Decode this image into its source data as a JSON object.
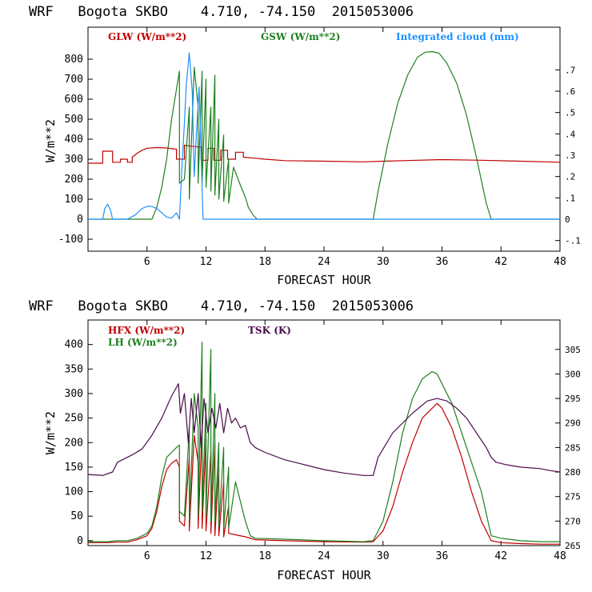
{
  "chart_data": [
    {
      "type": "line",
      "title": "WRF   Bogota SKBO    4.710, -74.150  2015053006",
      "xlabel": "FORECAST HOUR",
      "ylabel": "W/m**2",
      "xlim": [
        0,
        48
      ],
      "ylim": [
        -160,
        960
      ],
      "y2lim": [
        -0.15,
        0.9
      ],
      "xticks": [
        6,
        12,
        18,
        24,
        30,
        36,
        42,
        48
      ],
      "yticks": [
        -100,
        0,
        100,
        200,
        300,
        400,
        500,
        600,
        700,
        800
      ],
      "y2ticks": [
        -0.1,
        0,
        0.1,
        0.2,
        0.3,
        0.4,
        0.5,
        0.6,
        0.7
      ],
      "xtick_labels": [
        "6",
        "12",
        "18",
        "24",
        "30",
        "36",
        "42",
        "48"
      ],
      "ytick_labels": [
        "-100",
        "0",
        "100",
        "200",
        "300",
        "400",
        "500",
        "600",
        "700",
        "800"
      ],
      "y2tick_labels": [
        "-.1",
        "0",
        ".1",
        ".2",
        ".3",
        ".4",
        ".5",
        ".6",
        ".7"
      ],
      "series": [
        {
          "name": "GLW (W/m**2)",
          "color": "#c00000",
          "axis": "left",
          "x": [
            0,
            1.5,
            1.5,
            2.5,
            2.5,
            3.3,
            3.3,
            4.0,
            4.0,
            4.5,
            4.5,
            5.0,
            5.5,
            6,
            7,
            8,
            9.0,
            9.0,
            9.8,
            9.8,
            10.5,
            11.5,
            11.5,
            12.2,
            12.2,
            12.8,
            12.8,
            13.5,
            13.5,
            14.2,
            14.2,
            15.0,
            15.0,
            15.8,
            15.8,
            17,
            18,
            20,
            24,
            28,
            30,
            36,
            40,
            44,
            48
          ],
          "y": [
            280,
            280,
            340,
            340,
            285,
            285,
            300,
            300,
            285,
            285,
            310,
            330,
            345,
            355,
            358,
            356,
            350,
            300,
            300,
            370,
            365,
            360,
            295,
            295,
            355,
            355,
            295,
            295,
            345,
            345,
            300,
            300,
            335,
            335,
            310,
            305,
            300,
            293,
            290,
            287,
            290,
            298,
            295,
            290,
            285
          ]
        },
        {
          "name": "GSW (W/m**2)",
          "color": "#208020",
          "axis": "left",
          "x": [
            0,
            6.5,
            7.0,
            7.5,
            8.0,
            8.5,
            9.0,
            9.3,
            9.3,
            9.8,
            10.3,
            10.3,
            10.8,
            11.2,
            11.2,
            11.6,
            11.6,
            12.0,
            12.0,
            12.5,
            12.5,
            12.9,
            12.9,
            13.3,
            13.3,
            13.8,
            13.8,
            14.3,
            14.3,
            14.8,
            15.5,
            16.0,
            16.3,
            16.8,
            17.2,
            29.0,
            29.5,
            30.5,
            31.5,
            32.5,
            33.5,
            34.3,
            35.0,
            35.7,
            36.5,
            37.5,
            38.5,
            39.5,
            40.5,
            41.0,
            48
          ],
          "y": [
            0,
            0,
            60,
            160,
            300,
            500,
            650,
            740,
            180,
            200,
            560,
            100,
            760,
            560,
            180,
            740,
            180,
            700,
            160,
            560,
            140,
            720,
            120,
            500,
            100,
            420,
            90,
            300,
            80,
            260,
            170,
            110,
            60,
            20,
            0,
            0,
            140,
            380,
            580,
            720,
            810,
            835,
            838,
            830,
            780,
            680,
            520,
            310,
            80,
            0,
            0
          ]
        },
        {
          "name": "Integrated cloud (mm)",
          "color": "#1e90ff",
          "axis": "right",
          "x": [
            0,
            1.5,
            1.7,
            2.0,
            2.3,
            2.5,
            4.0,
            4.8,
            5.5,
            6.0,
            6.5,
            7.0,
            7.5,
            8.0,
            8.5,
            9.0,
            9.3,
            9.5,
            9.8,
            10.0,
            10.3,
            10.6,
            10.8,
            11.0,
            11.3,
            11.5,
            11.7,
            12.0,
            48
          ],
          "y": [
            0,
            0,
            0.05,
            0.07,
            0.04,
            0,
            0,
            0.02,
            0.05,
            0.06,
            0.06,
            0.05,
            0.03,
            0.01,
            0.005,
            0.03,
            0,
            0.2,
            0.45,
            0.63,
            0.78,
            0.6,
            0.2,
            0.38,
            0.62,
            0.3,
            0,
            0,
            0
          ]
        }
      ]
    },
    {
      "type": "line",
      "title": "WRF   Bogota SKBO    4.710, -74.150  2015053006",
      "xlabel": "FORECAST HOUR",
      "ylabel": "W/m**2",
      "xlim": [
        0,
        48
      ],
      "ylim": [
        -10,
        450
      ],
      "y2lim": [
        265,
        311
      ],
      "xticks": [
        6,
        12,
        18,
        24,
        30,
        36,
        42,
        48
      ],
      "yticks": [
        0,
        50,
        100,
        150,
        200,
        250,
        300,
        350,
        400
      ],
      "y2ticks": [
        265,
        270,
        275,
        280,
        285,
        290,
        295,
        300,
        305
      ],
      "xtick_labels": [
        "6",
        "12",
        "18",
        "24",
        "30",
        "36",
        "42",
        "48"
      ],
      "ytick_labels": [
        "0",
        "50",
        "100",
        "150",
        "200",
        "250",
        "300",
        "350",
        "400"
      ],
      "y2tick_labels": [
        "265",
        "270",
        "275",
        "280",
        "285",
        "290",
        "295",
        "300",
        "305"
      ],
      "series": [
        {
          "name": "HFX (W/m**2)",
          "color": "#c00000",
          "axis": "left",
          "x": [
            0,
            2,
            3,
            4,
            5,
            6,
            6.5,
            7,
            7.5,
            8,
            8.5,
            9.0,
            9.3,
            9.3,
            9.8,
            10.3,
            10.3,
            10.8,
            11.2,
            11.2,
            11.6,
            11.6,
            12.0,
            12.0,
            12.5,
            12.5,
            12.9,
            12.9,
            13.3,
            13.3,
            13.8,
            13.8,
            14.3,
            14.3,
            15,
            16,
            17,
            20,
            24,
            28,
            29,
            30,
            31,
            32,
            33,
            34,
            35,
            35.5,
            36,
            37,
            38,
            39,
            40,
            41,
            42,
            44,
            46,
            48
          ],
          "y": [
            -4,
            -4,
            -3,
            -3,
            2,
            10,
            25,
            60,
            110,
            145,
            158,
            165,
            150,
            40,
            30,
            170,
            20,
            215,
            160,
            25,
            230,
            25,
            210,
            20,
            180,
            15,
            200,
            10,
            150,
            10,
            120,
            8,
            70,
            15,
            12,
            8,
            2,
            0,
            -2,
            -3,
            -2,
            20,
            70,
            140,
            200,
            250,
            270,
            280,
            270,
            230,
            170,
            100,
            40,
            0,
            -4,
            -6,
            -7,
            -7
          ]
        },
        {
          "name": "LH (W/m**2)",
          "color": "#208020",
          "axis": "left",
          "x": [
            0,
            2,
            3,
            4,
            5,
            6,
            6.5,
            7,
            7.5,
            8,
            8.5,
            9.0,
            9.3,
            9.3,
            9.8,
            10.3,
            10.3,
            10.8,
            11.2,
            11.2,
            11.6,
            11.6,
            12.0,
            12.0,
            12.5,
            12.5,
            12.9,
            12.9,
            13.3,
            13.3,
            13.8,
            13.8,
            14.3,
            14.3,
            15,
            15.5,
            16,
            16.5,
            17,
            20,
            24,
            28,
            29,
            30,
            31,
            32,
            33,
            34,
            35,
            35.5,
            36,
            37,
            38,
            39,
            40,
            41,
            42,
            44,
            46,
            48
          ],
          "y": [
            -2,
            -2,
            0,
            0,
            5,
            15,
            30,
            70,
            130,
            170,
            180,
            190,
            195,
            60,
            50,
            230,
            40,
            300,
            230,
            50,
            405,
            60,
            280,
            50,
            390,
            40,
            300,
            40,
            200,
            30,
            190,
            25,
            150,
            25,
            120,
            80,
            40,
            10,
            5,
            3,
            0,
            -2,
            0,
            40,
            120,
            220,
            290,
            330,
            345,
            340,
            320,
            280,
            220,
            160,
            100,
            10,
            5,
            0,
            -2,
            -2
          ]
        },
        {
          "name": "TSK (K)",
          "color": "#4a0a4a",
          "axis": "right",
          "x": [
            0,
            1.5,
            2.5,
            3.0,
            3.5,
            4.5,
            5.5,
            6.5,
            7.5,
            8.5,
            9.2,
            9.4,
            9.8,
            10.2,
            10.5,
            10.8,
            11.2,
            11.5,
            11.8,
            12.2,
            12.6,
            13.0,
            13.4,
            13.8,
            14.2,
            14.6,
            15.0,
            15.5,
            16.0,
            16.5,
            17.0,
            18.0,
            20.0,
            22.0,
            24.0,
            26.0,
            28.0,
            29.0,
            29.5,
            31.0,
            33.0,
            34.5,
            35.5,
            36.5,
            37.5,
            38.5,
            39.5,
            40.5,
            41.0,
            41.5,
            42.5,
            44.0,
            46.0,
            47.0,
            48.0
          ],
          "y": [
            279.5,
            279.3,
            280,
            282,
            282.5,
            283.5,
            284.7,
            287.5,
            291,
            295.5,
            298,
            292,
            296,
            286,
            295,
            288,
            296,
            285,
            295,
            288,
            293,
            289,
            294,
            288,
            293,
            290,
            291,
            289,
            289.5,
            286,
            285,
            284,
            282.5,
            281.5,
            280.5,
            279.8,
            279.3,
            279.3,
            283,
            288,
            292,
            294.5,
            295,
            294.5,
            293,
            291,
            288,
            285,
            283,
            282,
            281.5,
            281,
            280.7,
            280.3,
            280
          ]
        }
      ]
    }
  ]
}
